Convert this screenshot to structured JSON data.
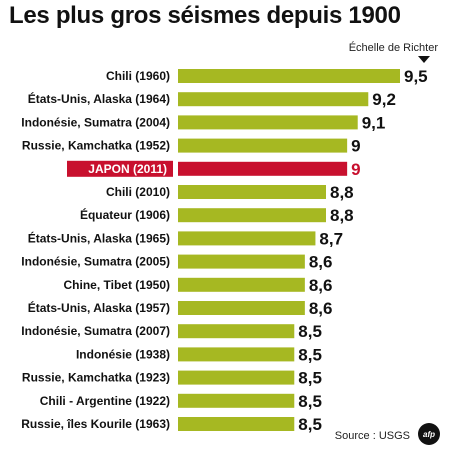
{
  "title": "Les plus gros séismes depuis 1900",
  "scale_label": "Échelle de Richter",
  "source": "Source : USGS",
  "logo_text": "afp",
  "colors": {
    "bar": "#a6b822",
    "highlight": "#c8102e",
    "highlight_text": "#c8102e",
    "text": "#111111"
  },
  "chart_data": {
    "type": "bar",
    "orientation": "horizontal",
    "title": "Les plus gros séismes depuis 1900",
    "ylabel": "Échelle de Richter",
    "categories": [
      "Chili (1960)",
      "États-Unis, Alaska (1964)",
      "Indonésie, Sumatra (2004)",
      "Russie, Kamchatka (1952)",
      "JAPON (2011)",
      "Chili (2010)",
      "Équateur (1906)",
      "États-Unis, Alaska (1965)",
      "Indonésie, Sumatra (2005)",
      "Chine, Tibet (1950)",
      "États-Unis, Alaska (1957)",
      "Indonésie, Sumatra (2007)",
      "Indonésie (1938)",
      "Russie, Kamchatka (1923)",
      "Chili - Argentine (1922)",
      "Russie, îles Kourile (1963)"
    ],
    "values": [
      9.5,
      9.2,
      9.1,
      9,
      9,
      8.8,
      8.8,
      8.7,
      8.6,
      8.6,
      8.6,
      8.5,
      8.5,
      8.5,
      8.5,
      8.5
    ],
    "value_labels": [
      "9,5",
      "9,2",
      "9,1",
      "9",
      "9",
      "8,8",
      "8,8",
      "8,7",
      "8,6",
      "8,6",
      "8,6",
      "8,5",
      "8,5",
      "8,5",
      "8,5",
      "8,5"
    ],
    "highlight_index": 4,
    "grid": false,
    "legend": "none"
  }
}
